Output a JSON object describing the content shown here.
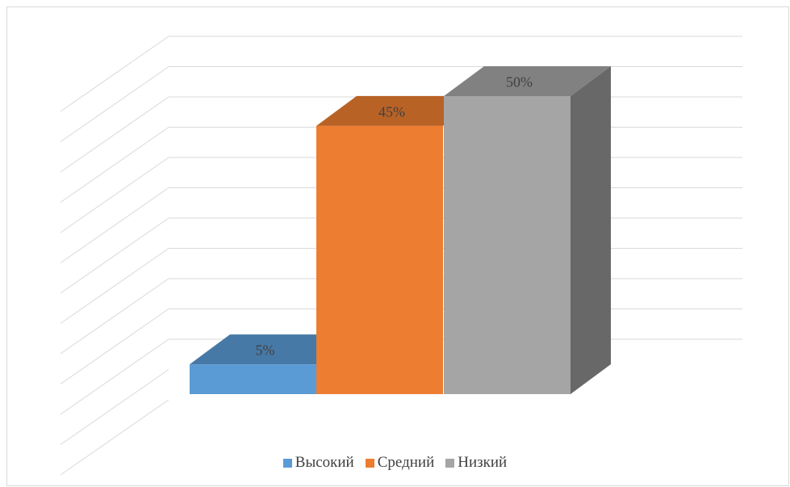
{
  "chart_data": {
    "type": "bar",
    "view": "3d-column",
    "categories": [
      "Высокий",
      "Средний",
      "Низкий"
    ],
    "values": [
      5,
      45,
      50
    ],
    "data_labels": [
      "5%",
      "45%",
      "50%"
    ],
    "value_unit": "%",
    "ylim": [
      0,
      50
    ],
    "grid": true,
    "legend_position": "bottom",
    "colors": {
      "Высокий": "#5b9bd5",
      "Средний": "#ed7d31",
      "Низкий": "#a5a5a5"
    }
  },
  "legend": {
    "items": [
      {
        "label": "Высокий",
        "color": "#5b9bd5"
      },
      {
        "label": "Средний",
        "color": "#ed7d31"
      },
      {
        "label": "Низкий",
        "color": "#a5a5a5"
      }
    ]
  }
}
